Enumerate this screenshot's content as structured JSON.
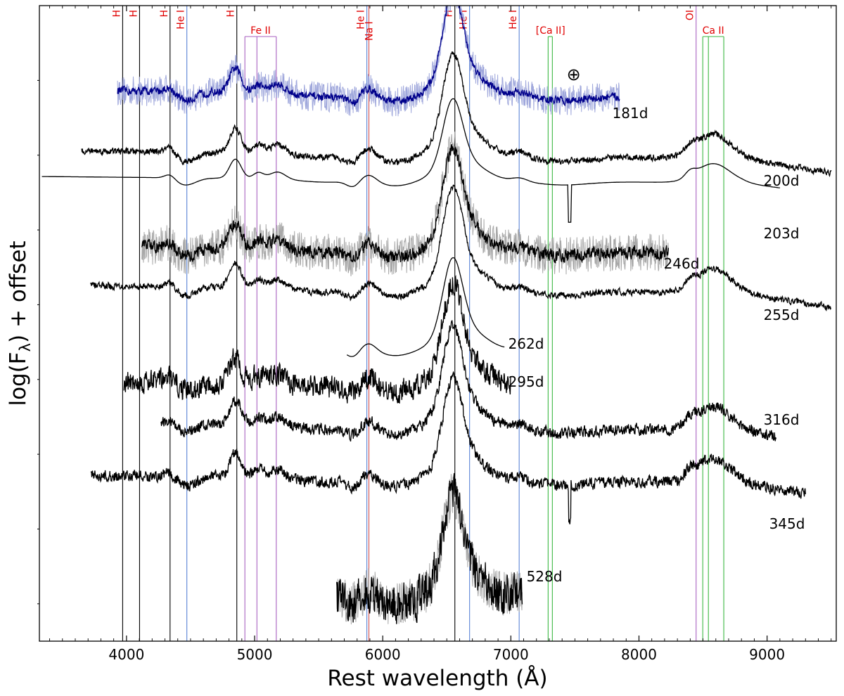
{
  "chart_data": {
    "type": "line",
    "title": "",
    "xlabel": "Rest wavelength (Å)",
    "ylabel": "log(F_λ) + offset",
    "ylabel_main": "log(F",
    "ylabel_sub": "λ",
    "ylabel_tail": ") + offset",
    "xlim": [
      3320,
      9540
    ],
    "ylim": [
      0,
      8.5
    ],
    "xticks": [
      4000,
      5000,
      6000,
      7000,
      8000,
      9000
    ],
    "xtick_labels": [
      "4000",
      "5000",
      "6000",
      "7000",
      "8000",
      "9000"
    ],
    "yticks_unlabeled": [
      0.5,
      1.5,
      2.5,
      3.5,
      4.5,
      5.5,
      6.5,
      7.5
    ],
    "grid": false,
    "legend": "none",
    "colors": {
      "spectrum": "#000000",
      "raw_spectrum": "#a8a8a8",
      "blue_spectrum": "#00008b",
      "blue_raw": "#a0a8dc",
      "H": "#000000",
      "He I": "#5b84d6",
      "Na I": "#d05050",
      "Fe II": "#a860c0",
      "O I": "#a860c0",
      "Ca": "#3cb843",
      "line_label": "#e00000"
    },
    "line_identifications": [
      {
        "label": "H",
        "species": "H",
        "wavelengths": [
          3970
        ]
      },
      {
        "label": "H",
        "species": "H",
        "wavelengths": [
          4102
        ]
      },
      {
        "label": "H",
        "species": "H",
        "wavelengths": [
          4340
        ]
      },
      {
        "label": "He I",
        "species": "He I",
        "wavelengths": [
          4471
        ]
      },
      {
        "label": "H",
        "species": "H",
        "wavelengths": [
          4861
        ]
      },
      {
        "label": "Fe II",
        "species": "Fe II",
        "wavelengths": [
          4924,
          5018,
          5169
        ]
      },
      {
        "label": "He I",
        "species": "He I",
        "wavelengths": [
          5876
        ]
      },
      {
        "label": "Na I",
        "species": "Na I",
        "wavelengths": [
          5892
        ]
      },
      {
        "label": "H",
        "species": "H",
        "wavelengths": [
          6563
        ]
      },
      {
        "label": "He I",
        "species": "He I",
        "wavelengths": [
          6678
        ]
      },
      {
        "label": "He I",
        "species": "He I",
        "wavelengths": [
          7065
        ]
      },
      {
        "label": "[Ca II]",
        "species": "Ca",
        "wavelengths": [
          7291,
          7324
        ]
      },
      {
        "label": "OI",
        "species": "O I",
        "wavelengths": [
          8446
        ]
      },
      {
        "label": "Ca II",
        "species": "Ca",
        "wavelengths": [
          8498,
          8542,
          8662
        ]
      }
    ],
    "telluric_symbol": "⊕",
    "telluric_wavelength": 7600,
    "series": [
      {
        "name": "181d",
        "range": [
          3930,
          7850
        ],
        "base": 7.33,
        "amp": 1.0,
        "style": "blue",
        "noise": 0.05,
        "raw_noise": 0.2
      },
      {
        "name": "200d",
        "range": [
          3650,
          9500
        ],
        "base": 6.52,
        "amp": 1.0,
        "style": "black",
        "noise": 0.04
      },
      {
        "name": "203d",
        "range": [
          3340,
          9100
        ],
        "base": 6.18,
        "amp": 0.8,
        "style": "smooth",
        "noise": 0.0
      },
      {
        "name": "246d",
        "range": [
          4120,
          8230
        ],
        "base": 5.25,
        "amp": 1.0,
        "style": "noisy",
        "noise": 0.08,
        "raw_noise": 0.25
      },
      {
        "name": "255d",
        "range": [
          3720,
          9500
        ],
        "base": 4.72,
        "amp": 1.0,
        "style": "black",
        "noise": 0.04
      },
      {
        "name": "262d",
        "range": [
          5720,
          6950
        ],
        "base": 3.92,
        "amp": 0.9,
        "style": "smooth",
        "noise": 0.01
      },
      {
        "name": "295d",
        "range": [
          3980,
          7000
        ],
        "base": 3.45,
        "amp": 1.0,
        "style": "black",
        "noise": 0.14
      },
      {
        "name": "316d",
        "range": [
          4270,
          9070
        ],
        "base": 2.88,
        "amp": 1.0,
        "style": "black",
        "noise": 0.07
      },
      {
        "name": "345d",
        "range": [
          3720,
          9300
        ],
        "base": 2.18,
        "amp": 1.0,
        "style": "black",
        "noise": 0.07
      },
      {
        "name": "528d",
        "range": [
          5640,
          7090
        ],
        "base": 0.62,
        "amp": 1.0,
        "style": "noisy",
        "noise": 0.25,
        "raw_noise": 0.3
      }
    ]
  }
}
